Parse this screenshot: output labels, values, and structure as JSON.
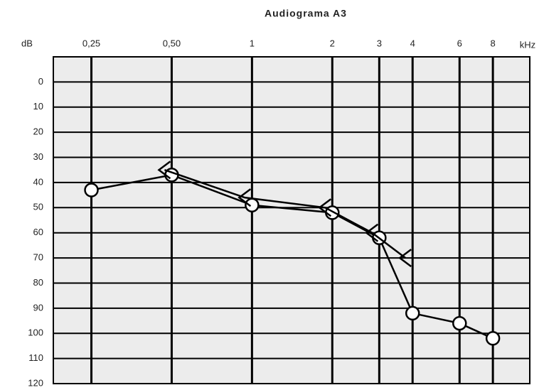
{
  "chart_data": {
    "type": "line",
    "title": "Audiograma A3",
    "ylabel": "dB",
    "xlabel": "kHz",
    "x": [
      0.25,
      0.5,
      1,
      2,
      3,
      4,
      6,
      8
    ],
    "xlim": [
      0.18,
      11
    ],
    "log_x": true,
    "xticks": [
      {
        "value": 0.25,
        "label": "0,25"
      },
      {
        "value": 0.5,
        "label": "0,50"
      },
      1,
      2,
      3,
      4,
      6,
      8
    ],
    "ylim": [
      -10,
      120
    ],
    "y_inverted": true,
    "yticks": [
      0,
      10,
      20,
      30,
      40,
      50,
      60,
      70,
      80,
      90,
      100,
      110,
      120
    ],
    "grid": true,
    "series": [
      {
        "marker": "circle",
        "color": "#000000",
        "values": [
          43,
          37,
          49,
          52,
          62,
          92,
          96,
          102
        ]
      },
      {
        "marker": "bracket",
        "color": "#000000",
        "values": [
          null,
          35,
          46,
          50,
          60,
          70,
          null,
          null
        ]
      }
    ]
  }
}
